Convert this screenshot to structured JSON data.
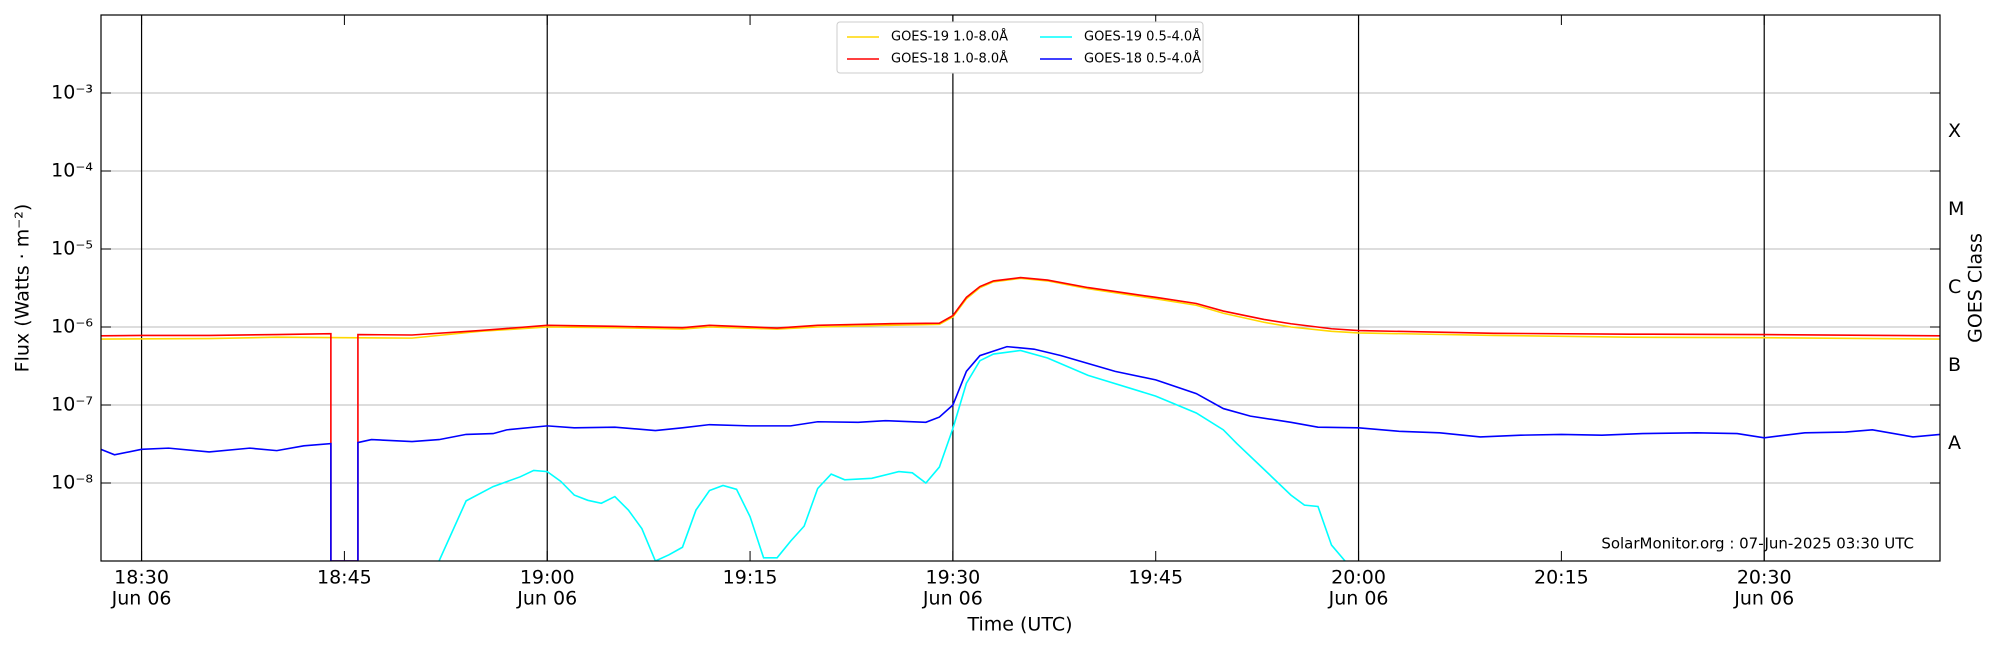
{
  "chart_data": {
    "type": "line",
    "xlabel": "Time (UTC)",
    "ylabel": "Flux (Watts · m⁻²)",
    "y2label": "GOES Class",
    "annotation": "SolarMonitor.org : 07-Jun-2025 03:30 UTC",
    "log_y": true,
    "grid": true,
    "legend": "upper center",
    "xlim": [
      "18:27",
      "20:43"
    ],
    "ylim": [
      1e-09,
      0.01
    ],
    "yticks": [
      {
        "value": 1e-08,
        "label": "10⁻⁸"
      },
      {
        "value": 1e-07,
        "label": "10⁻⁷"
      },
      {
        "value": 1e-06,
        "label": "10⁻⁶"
      },
      {
        "value": 1e-05,
        "label": "10⁻⁵"
      },
      {
        "value": 0.0001,
        "label": "10⁻⁴"
      },
      {
        "value": 0.001,
        "label": "10⁻³"
      }
    ],
    "xticks": [
      {
        "value": "18:30",
        "label": "18:30",
        "date": "Jun 06"
      },
      {
        "value": "18:45",
        "label": "18:45"
      },
      {
        "value": "19:00",
        "label": "19:00",
        "date": "Jun 06"
      },
      {
        "value": "19:15",
        "label": "19:15"
      },
      {
        "value": "19:30",
        "label": "19:30",
        "date": "Jun 06"
      },
      {
        "value": "19:45",
        "label": "19:45"
      },
      {
        "value": "20:00",
        "label": "20:00",
        "date": "Jun 06"
      },
      {
        "value": "20:15",
        "label": "20:15"
      },
      {
        "value": "20:30",
        "label": "20:30",
        "date": "Jun 06"
      }
    ],
    "classes": [
      {
        "label": "A",
        "value": 3.2e-08
      },
      {
        "label": "B",
        "value": 3.2e-07
      },
      {
        "label": "C",
        "value": 3.2e-06
      },
      {
        "label": "M",
        "value": 3.2e-05
      },
      {
        "label": "X",
        "value": 0.00032
      }
    ],
    "series": [
      {
        "name": "GOES-19 1.0-8.0Å",
        "color": "#ffd700",
        "x": [
          "18:27",
          "18:35",
          "18:40",
          "18:45",
          "18:50",
          "18:55",
          "19:00",
          "19:05",
          "19:10",
          "19:12",
          "19:17",
          "19:20",
          "19:25",
          "19:29",
          "19:30",
          "19:31",
          "19:32",
          "19:33",
          "19:35",
          "19:37",
          "19:40",
          "19:45",
          "19:48",
          "19:50",
          "19:53",
          "19:55",
          "19:58",
          "20:00",
          "20:10",
          "20:20",
          "20:30",
          "20:43"
        ],
        "values": [
          7e-07,
          7.1e-07,
          7.4e-07,
          7.3e-07,
          7.2e-07,
          8.8e-07,
          1e-06,
          9.8e-07,
          9.4e-07,
          1e-06,
          9.4e-07,
          1e-06,
          1.05e-06,
          1.08e-06,
          1.35e-06,
          2.3e-06,
          3.2e-06,
          3.8e-06,
          4.2e-06,
          3.9e-06,
          3.1e-06,
          2.3e-06,
          1.9e-06,
          1.5e-06,
          1.15e-06,
          1e-06,
          8.8e-07,
          8.4e-07,
          7.8e-07,
          7.4e-07,
          7.3e-07,
          7e-07
        ]
      },
      {
        "name": "GOES-18 1.0-8.0Å",
        "color": "#ff0000",
        "x": [
          "18:27",
          "18:30",
          "18:35",
          "18:40",
          "18:44",
          "18:44",
          "18:46",
          "18:46",
          "18:50",
          "18:55",
          "19:00",
          "19:05",
          "19:10",
          "19:12",
          "19:17",
          "19:20",
          "19:25",
          "19:29",
          "19:30",
          "19:31",
          "19:32",
          "19:33",
          "19:35",
          "19:37",
          "19:40",
          "19:45",
          "19:48",
          "19:50",
          "19:53",
          "19:55",
          "19:58",
          "20:00",
          "20:10",
          "20:20",
          "20:30",
          "20:43"
        ],
        "values": [
          7.7e-07,
          7.8e-07,
          7.8e-07,
          8e-07,
          8.2e-07,
          1e-09,
          1e-09,
          8e-07,
          7.9e-07,
          9e-07,
          1.05e-06,
          1.02e-06,
          9.8e-07,
          1.05e-06,
          9.7e-07,
          1.05e-06,
          1.1e-06,
          1.12e-06,
          1.4e-06,
          2.4e-06,
          3.3e-06,
          3.9e-06,
          4.3e-06,
          4e-06,
          3.2e-06,
          2.4e-06,
          2e-06,
          1.6e-06,
          1.25e-06,
          1.1e-06,
          9.5e-07,
          9e-07,
          8.3e-07,
          8.1e-07,
          8e-07,
          7.7e-07
        ]
      },
      {
        "name": "GOES-19 0.5-4.0Å",
        "color": "#00ffff",
        "x": [
          "18:52",
          "18:54",
          "18:56",
          "18:58",
          "18:59",
          "19:00",
          "19:01",
          "19:02",
          "19:03",
          "19:04",
          "19:05",
          "19:06",
          "19:07",
          "19:08",
          "19:09",
          "19:10",
          "19:11",
          "19:12",
          "19:13",
          "19:14",
          "19:15",
          "19:16",
          "19:17",
          "19:18",
          "19:19",
          "19:20",
          "19:21",
          "19:22",
          "19:24",
          "19:26",
          "19:27",
          "19:28",
          "19:29",
          "19:30",
          "19:31",
          "19:32",
          "19:33",
          "19:35",
          "19:37",
          "19:40",
          "19:45",
          "19:48",
          "19:50",
          "19:51",
          "19:53",
          "19:55",
          "19:56",
          "19:57",
          "19:58",
          "19:59"
        ],
        "values": [
          1e-09,
          5.9e-09,
          9e-09,
          1.2e-08,
          1.45e-08,
          1.4e-08,
          1.05e-08,
          7e-09,
          6e-09,
          5.5e-09,
          6.7e-09,
          4.5e-09,
          2.6e-09,
          1e-09,
          1.2e-09,
          1.5e-09,
          4.5e-09,
          8e-09,
          9.3e-09,
          8.3e-09,
          3.7e-09,
          1.1e-09,
          1.1e-09,
          1.8e-09,
          2.8e-09,
          8.5e-09,
          1.3e-08,
          1.1e-08,
          1.15e-08,
          1.4e-08,
          1.35e-08,
          1e-08,
          1.6e-08,
          5e-08,
          1.9e-07,
          3.7e-07,
          4.5e-07,
          5e-07,
          4e-07,
          2.4e-07,
          1.3e-07,
          7.9e-08,
          4.8e-08,
          3.2e-08,
          1.5e-08,
          7e-09,
          5.2e-09,
          5e-09,
          1.6e-09,
          1e-09
        ]
      },
      {
        "name": "GOES-18 0.5-4.0Å",
        "color": "#0000ff",
        "x": [
          "18:27",
          "18:28",
          "18:30",
          "18:32",
          "18:35",
          "18:38",
          "18:40",
          "18:42",
          "18:44",
          "18:44",
          "18:46",
          "18:46",
          "18:47",
          "18:50",
          "18:52",
          "18:54",
          "18:56",
          "18:57",
          "19:00",
          "19:02",
          "19:05",
          "19:08",
          "19:10",
          "19:12",
          "19:15",
          "19:18",
          "19:20",
          "19:23",
          "19:25",
          "19:28",
          "19:29",
          "19:30",
          "19:31",
          "19:32",
          "19:34",
          "19:36",
          "19:38",
          "19:40",
          "19:42",
          "19:45",
          "19:48",
          "19:50",
          "19:52",
          "19:55",
          "19:57",
          "20:00",
          "20:03",
          "20:06",
          "20:09",
          "20:12",
          "20:15",
          "20:18",
          "20:21",
          "20:25",
          "20:28",
          "20:30",
          "20:33",
          "20:36",
          "20:38",
          "20:41",
          "20:43"
        ],
        "values": [
          2.7e-08,
          2.3e-08,
          2.7e-08,
          2.8e-08,
          2.5e-08,
          2.8e-08,
          2.6e-08,
          3e-08,
          3.2e-08,
          1e-09,
          1e-09,
          3.3e-08,
          3.6e-08,
          3.4e-08,
          3.6e-08,
          4.2e-08,
          4.3e-08,
          4.8e-08,
          5.4e-08,
          5.1e-08,
          5.2e-08,
          4.7e-08,
          5.1e-08,
          5.6e-08,
          5.4e-08,
          5.4e-08,
          6.1e-08,
          6e-08,
          6.3e-08,
          6e-08,
          7e-08,
          1e-07,
          2.7e-07,
          4.3e-07,
          5.6e-07,
          5.2e-07,
          4.3e-07,
          3.4e-07,
          2.7e-07,
          2.1e-07,
          1.4e-07,
          9e-08,
          7.2e-08,
          6e-08,
          5.2e-08,
          5.1e-08,
          4.6e-08,
          4.4e-08,
          3.9e-08,
          4.1e-08,
          4.2e-08,
          4.1e-08,
          4.3e-08,
          4.4e-08,
          4.3e-08,
          3.8e-08,
          4.4e-08,
          4.5e-08,
          4.8e-08,
          3.9e-08,
          4.2e-08
        ]
      }
    ]
  }
}
